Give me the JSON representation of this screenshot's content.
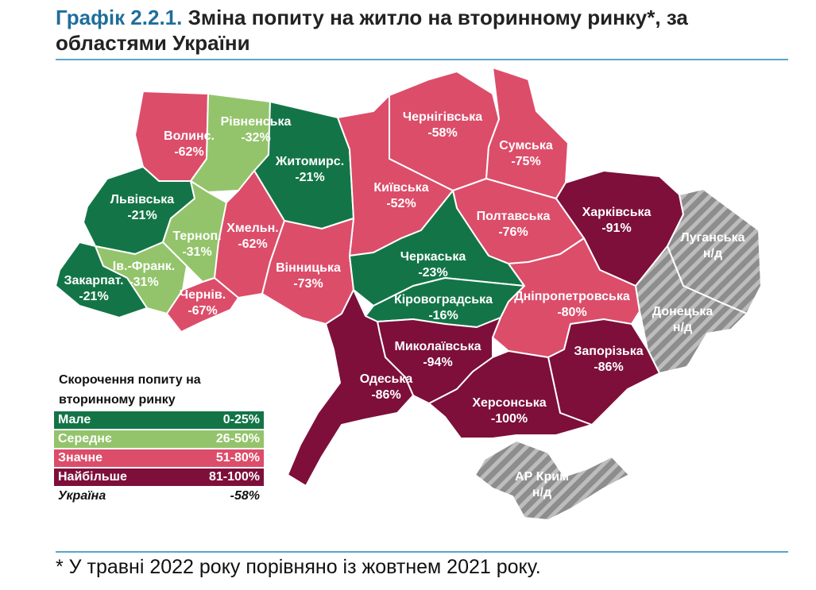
{
  "header": {
    "title_number": "Графік 2.2.1.",
    "title_text": "Зміна попиту на житло на вторинному ринку*, за областями України"
  },
  "colors": {
    "small": "#137547",
    "medium": "#93c46b",
    "significant": "#dc4d6a",
    "largest": "#7d0f3a",
    "no_data": "#8d8d8d",
    "no_data_stripe": "#b9b9b9"
  },
  "legend": {
    "title": "Скорочення попиту на вторинному ринку",
    "items": [
      {
        "label": "Мале",
        "range": "0-25%",
        "color": "#137547"
      },
      {
        "label": "Середнє",
        "range": "26-50%",
        "color": "#93c46b"
      },
      {
        "label": "Значне",
        "range": "51-80%",
        "color": "#dc4d6a"
      },
      {
        "label": "Найбільше",
        "range": "81-100%",
        "color": "#7d0f3a"
      }
    ],
    "total_label": "Україна",
    "total_value": "-58%"
  },
  "regions": [
    {
      "id": "volyn",
      "name": "Волинс.",
      "value": "-62%",
      "category": "significant"
    },
    {
      "id": "rivne",
      "name": "Рівненська",
      "value": "-32%",
      "category": "medium"
    },
    {
      "id": "zhytomyr",
      "name": "Житомирс.",
      "value": "-21%",
      "category": "small"
    },
    {
      "id": "chernihiv",
      "name": "Чернігівська",
      "value": "-58%",
      "category": "significant"
    },
    {
      "id": "sumy",
      "name": "Сумська",
      "value": "-75%",
      "category": "significant"
    },
    {
      "id": "lviv",
      "name": "Львівська",
      "value": "-21%",
      "category": "small"
    },
    {
      "id": "ternopil",
      "name": "Терноп.",
      "value": "-31%",
      "category": "medium"
    },
    {
      "id": "khmelnytskyi",
      "name": "Хмельн.",
      "value": "-62%",
      "category": "significant"
    },
    {
      "id": "kyiv",
      "name": "Київська",
      "value": "-52%",
      "category": "significant"
    },
    {
      "id": "poltava",
      "name": "Полтавська",
      "value": "-76%",
      "category": "significant"
    },
    {
      "id": "kharkiv",
      "name": "Харківська",
      "value": "-91%",
      "category": "largest"
    },
    {
      "id": "luhansk",
      "name": "Луганська",
      "value": "н/д",
      "category": "no_data"
    },
    {
      "id": "ivano_frankivsk",
      "name": "Ів.-Франк.",
      "value": "-31%",
      "category": "medium"
    },
    {
      "id": "zakarpattia",
      "name": "Закарпат.",
      "value": "-21%",
      "category": "small"
    },
    {
      "id": "chernivtsi",
      "name": "Чернів.",
      "value": "-67%",
      "category": "significant"
    },
    {
      "id": "vinnytsia",
      "name": "Вінницька",
      "value": "-73%",
      "category": "significant"
    },
    {
      "id": "cherkasy",
      "name": "Черкаська",
      "value": "-23%",
      "category": "small"
    },
    {
      "id": "kirovohrad",
      "name": "Кіровоградська",
      "value": "-16%",
      "category": "small"
    },
    {
      "id": "dnipropetrovsk",
      "name": "Дніпропетровська",
      "value": "-80%",
      "category": "significant"
    },
    {
      "id": "donetsk",
      "name": "Донецька",
      "value": "н/д",
      "category": "no_data"
    },
    {
      "id": "mykolaiv",
      "name": "Миколаївська",
      "value": "-94%",
      "category": "largest"
    },
    {
      "id": "odesa",
      "name": "Одеська",
      "value": "-86%",
      "category": "largest"
    },
    {
      "id": "zaporizhzhia",
      "name": "Запорізька",
      "value": "-86%",
      "category": "largest"
    },
    {
      "id": "kherson",
      "name": "Херсонська",
      "value": "-100%",
      "category": "largest"
    },
    {
      "id": "crimea",
      "name": "АР Крим",
      "value": "н/д",
      "category": "no_data"
    }
  ],
  "footnote": "* У травні 2022 року порівняно із жовтнем 2021 року."
}
